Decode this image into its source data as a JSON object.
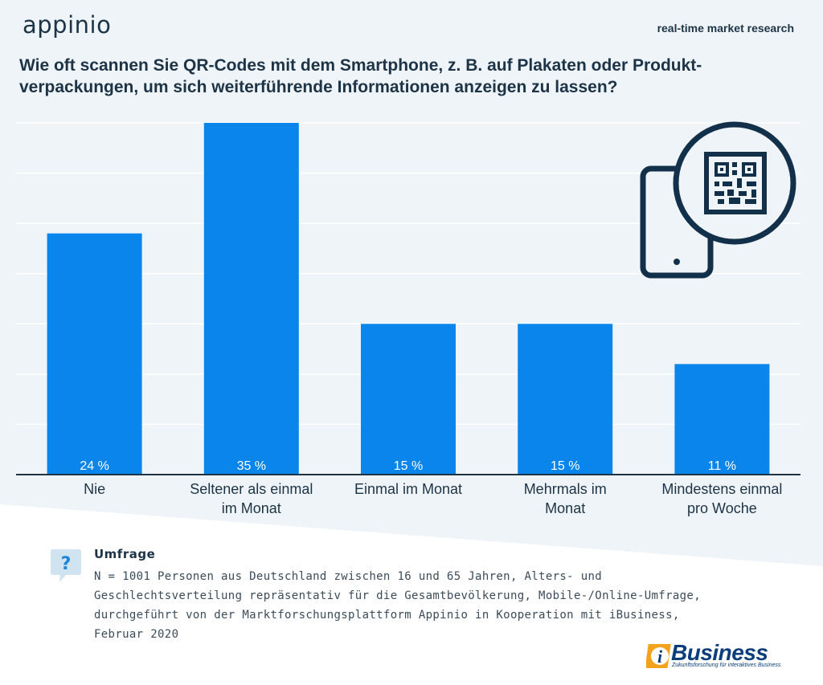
{
  "header": {
    "logo_text": "appinio",
    "tagline": "real-time market research",
    "title": "Wie oft scannen Sie QR-Codes mit dem Smartphone, z. B. auf Plakaten oder Produkt-verpackungen, um sich weiterführende Informationen anzeigen zu lassen?"
  },
  "colors": {
    "bar": "#0a85ec",
    "text": "#1d3346",
    "background_band": "#eef4f8",
    "grid": "#ffffff",
    "icon_stroke": "#12304a",
    "bubble": "#cfe3f0",
    "bubble_mark": "#1e84d8"
  },
  "chart_data": {
    "type": "bar",
    "categories": [
      [
        "Nie"
      ],
      [
        "Seltener als einmal",
        "im Monat"
      ],
      [
        "Einmal im Monat"
      ],
      [
        "Mehrmals im",
        "Monat"
      ],
      [
        "Mindestens einmal",
        "pro Woche"
      ]
    ],
    "values": [
      24,
      35,
      15,
      15,
      11
    ],
    "value_labels": [
      "24 %",
      "35 %",
      "15 %",
      "15 %",
      "11 %"
    ],
    "unit": "%",
    "ylim": [
      0,
      35
    ],
    "grid": true,
    "legend": "none"
  },
  "icons": [
    "smartphone-icon",
    "qr-code-icon",
    "question-bubble-icon"
  ],
  "footer": {
    "survey_title": "Umfrage",
    "survey_lines": [
      "N = 1001 Personen aus Deutschland zwischen 16 und 65 Jahren, Alters- und",
      "Geschlechtsverteilung repräsentativ für die Gesamtbevölkerung, Mobile-/Online-Umfrage,",
      "durchgeführt von der Marktforschungsplattform Appinio in Kooperation mit iBusiness,",
      "Februar 2020"
    ],
    "question_mark": "?",
    "partner_logo_letter": "i",
    "partner_logo_name": "Business",
    "partner_tagline": "Zukunftsforschung für interaktives Business"
  }
}
